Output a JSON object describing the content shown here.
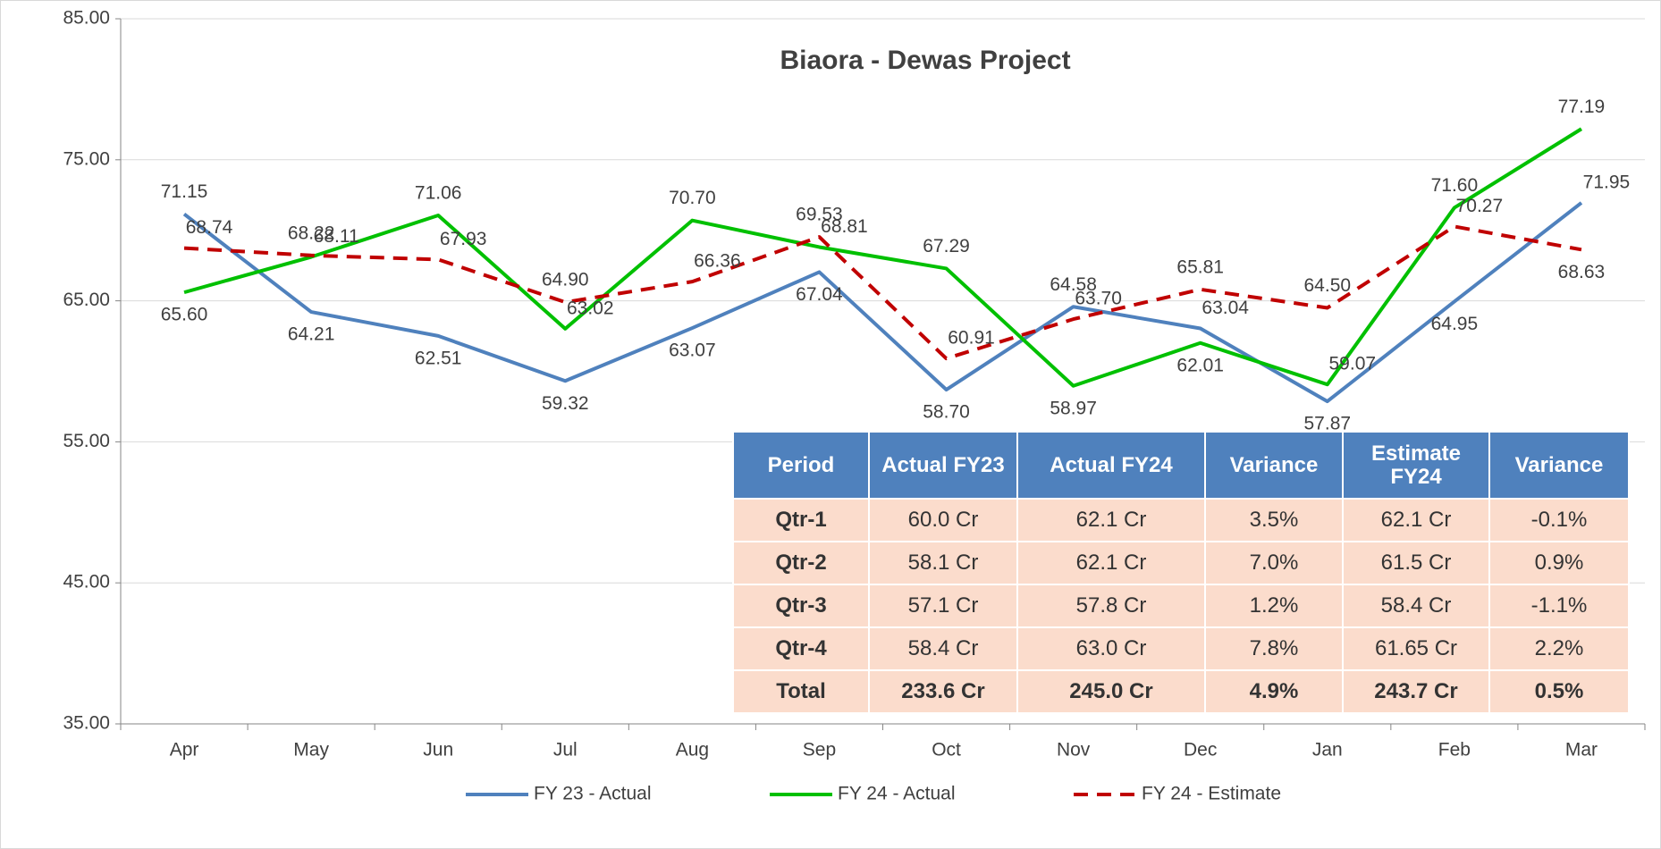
{
  "chart_data": {
    "type": "line",
    "title": "Biaora - Dewas Project",
    "categories": [
      "Apr",
      "May",
      "Jun",
      "Jul",
      "Aug",
      "Sep",
      "Oct",
      "Nov",
      "Dec",
      "Jan",
      "Feb",
      "Mar"
    ],
    "series": [
      {
        "name": "FY 23 - Actual",
        "color": "#4f81bd",
        "dash": false,
        "values": [
          71.15,
          64.21,
          62.51,
          59.32,
          63.07,
          67.04,
          58.7,
          64.58,
          63.04,
          57.87,
          64.95,
          71.95
        ],
        "value_labels": [
          "71.15",
          "64.21",
          "62.51",
          "59.32",
          "63.07",
          "67.04",
          "58.70",
          "64.58",
          "63.04",
          "57.87",
          "64.95",
          "71.95"
        ]
      },
      {
        "name": "FY 24 - Actual",
        "color": "#00c000",
        "dash": false,
        "values": [
          65.6,
          68.11,
          71.06,
          63.02,
          70.7,
          68.81,
          67.29,
          58.97,
          62.01,
          59.07,
          71.6,
          77.19
        ],
        "value_labels": [
          "65.60",
          "68.11",
          "71.06",
          "63.02",
          "70.70",
          "68.81",
          "67.29",
          "58.97",
          "62.01",
          "59.07",
          "71.60",
          "77.19"
        ]
      },
      {
        "name": "FY 24 - Estimate",
        "color": "#c00000",
        "dash": true,
        "values": [
          68.74,
          68.22,
          67.93,
          64.9,
          66.36,
          69.53,
          60.91,
          63.7,
          65.81,
          64.5,
          70.27,
          68.63
        ],
        "value_labels": [
          "68.74",
          "68.22",
          "67.93",
          "64.90",
          "66.36",
          "69.53",
          "60.91",
          "63.70",
          "65.81",
          "64.50",
          "70.27",
          "68.63"
        ]
      }
    ],
    "ylim": [
      35,
      85
    ],
    "yticks": [
      {
        "value": 35,
        "label": "35.00"
      },
      {
        "value": 45,
        "label": "45.00"
      },
      {
        "value": 55,
        "label": "55.00"
      },
      {
        "value": 65,
        "label": "65.00"
      },
      {
        "value": 75,
        "label": "75.00"
      },
      {
        "value": 85,
        "label": "85.00"
      }
    ],
    "grid": true,
    "legend": "bottom"
  },
  "table": {
    "header": [
      "Period",
      "Actual FY23",
      "Actual FY24",
      "Variance",
      "Estimate FY24",
      "Variance"
    ],
    "rows": [
      [
        "Qtr-1",
        "60.0 Cr",
        "62.1 Cr",
        "3.5%",
        "62.1 Cr",
        "-0.1%"
      ],
      [
        "Qtr-2",
        "58.1 Cr",
        "62.1 Cr",
        "7.0%",
        "61.5 Cr",
        "0.9%"
      ],
      [
        "Qtr-3",
        "57.1 Cr",
        "57.8 Cr",
        "1.2%",
        "58.4 Cr",
        "-1.1%"
      ],
      [
        "Qtr-4",
        "58.4 Cr",
        "63.0 Cr",
        "7.8%",
        "61.65 Cr",
        "2.2%"
      ],
      [
        "Total",
        "233.6 Cr",
        "245.0 Cr",
        "4.9%",
        "243.7 Cr",
        "0.5%"
      ]
    ]
  }
}
